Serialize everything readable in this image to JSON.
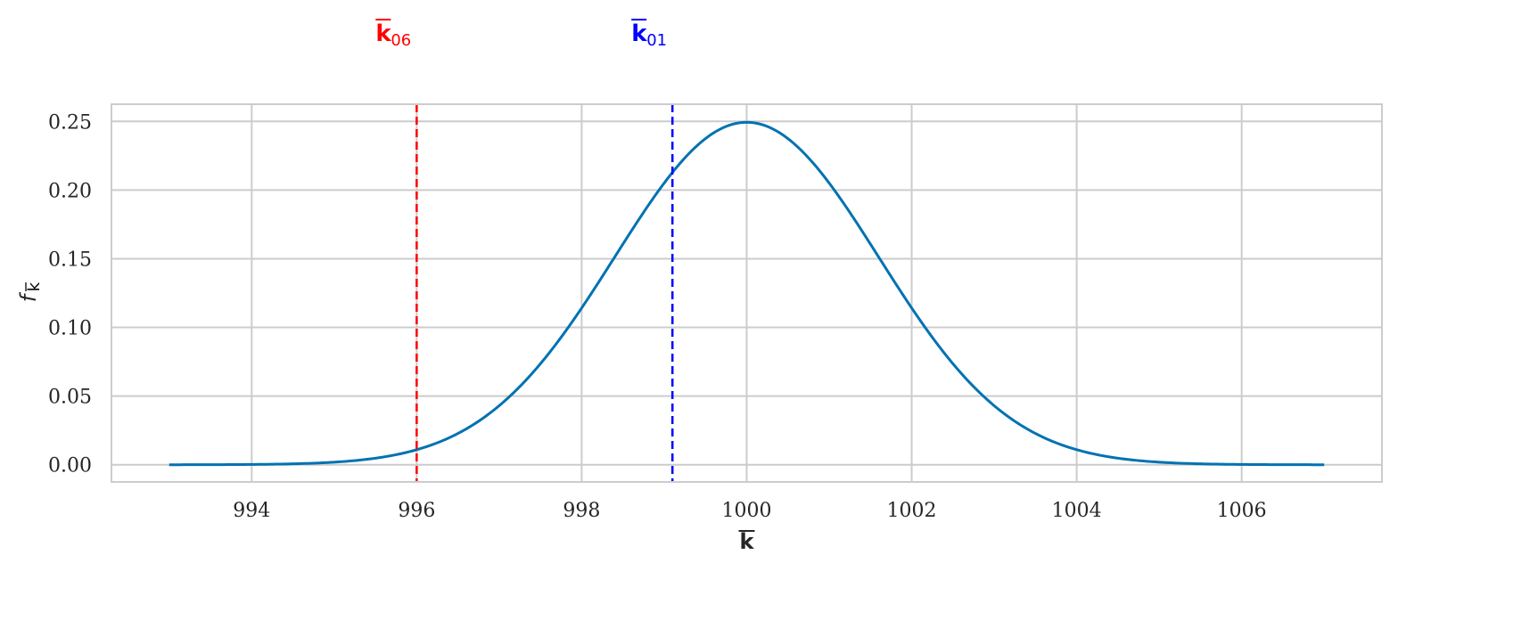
{
  "chart_data": {
    "type": "line",
    "title": "",
    "xlabel": "k",
    "ylabel": "f",
    "ylabel_sub": "k",
    "xlim": [
      992.3,
      1007.7
    ],
    "ylim": [
      -0.0125,
      0.2625
    ],
    "xticks": [
      994,
      996,
      998,
      1000,
      1002,
      1004,
      1006
    ],
    "xtick_labels": [
      "994",
      "996",
      "998",
      "1000",
      "1002",
      "1004",
      "1006"
    ],
    "yticks": [
      0.0,
      0.05,
      0.1,
      0.15,
      0.2,
      0.25
    ],
    "ytick_labels": [
      "0.00",
      "0.05",
      "0.10",
      "0.15",
      "0.20",
      "0.25"
    ],
    "grid": true,
    "series": [
      {
        "distribution": "normal",
        "mean": 1000,
        "std": 1.6,
        "x_range": [
          993,
          1007
        ],
        "color": "#0072b2"
      }
    ],
    "vlines": [
      {
        "x": 996.0,
        "color": "#ff0000",
        "style": "dashed",
        "label": "k",
        "label_sub": "06"
      },
      {
        "x": 999.1,
        "color": "#0000ff",
        "style": "dashed",
        "label": "k",
        "label_sub": "01"
      }
    ]
  }
}
